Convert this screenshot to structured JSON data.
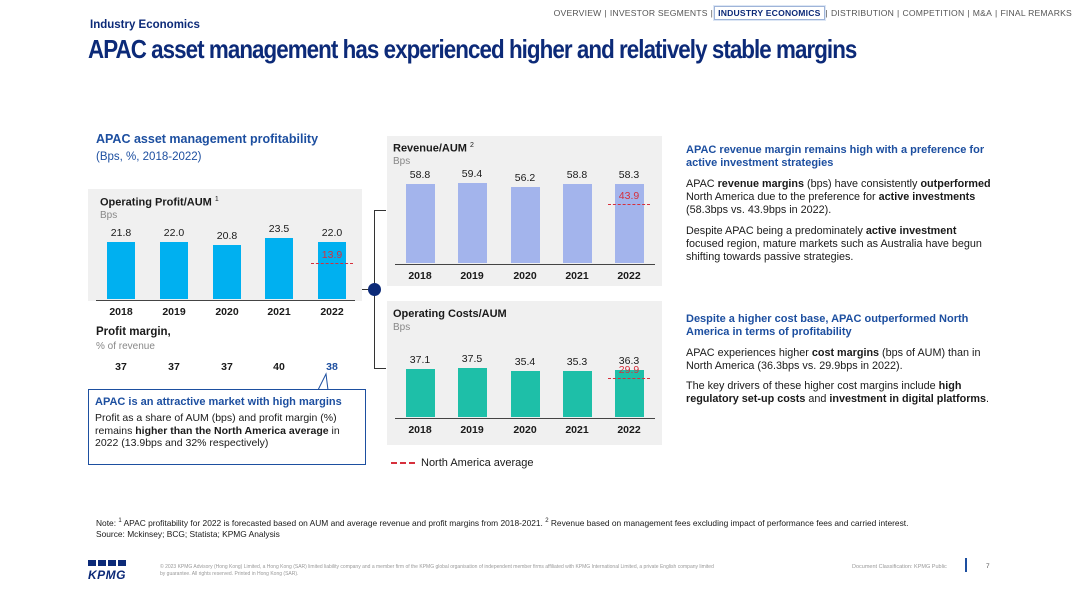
{
  "nav": {
    "items": [
      "OVERVIEW",
      "INVESTOR SEGMENTS",
      "INDUSTRY ECONOMICS",
      "DISTRIBUTION",
      "COMPETITION",
      "M&A",
      "FINAL REMARKS"
    ],
    "active": "INDUSTRY ECONOMICS"
  },
  "section_label": "Industry Economics",
  "page_title": "APAC asset management has experienced higher and relatively stable margins",
  "left": {
    "title": "APAC asset management profitability",
    "subtitle": "(Bps, %, 2018-2022)"
  },
  "chart_data": [
    {
      "type": "bar",
      "title": "Operating Profit/AUM",
      "footnote_ref": "1",
      "unit": "Bps",
      "categories": [
        "2018",
        "2019",
        "2020",
        "2021",
        "2022"
      ],
      "values": [
        21.8,
        22.0,
        20.8,
        23.5,
        22.0
      ],
      "value_labels": [
        "21.8",
        "22.0",
        "20.8",
        "23.5",
        "22.0"
      ],
      "north_america_2022": 13.9,
      "north_america_label": "13.9",
      "color": "#00b0f0"
    },
    {
      "type": "bar",
      "title": "Revenue/AUM",
      "footnote_ref": "2",
      "unit": "Bps",
      "categories": [
        "2018",
        "2019",
        "2020",
        "2021",
        "2022"
      ],
      "values": [
        58.8,
        59.4,
        56.2,
        58.8,
        58.3
      ],
      "value_labels": [
        "58.8",
        "59.4",
        "56.2",
        "58.8",
        "58.3"
      ],
      "north_america_2022": 43.9,
      "north_america_label": "43.9",
      "color": "#a3b4ec"
    },
    {
      "type": "bar",
      "title": "Operating Costs/AUM",
      "footnote_ref": "",
      "unit": "Bps",
      "categories": [
        "2018",
        "2019",
        "2020",
        "2021",
        "2022"
      ],
      "values": [
        37.1,
        37.5,
        35.4,
        35.3,
        36.3
      ],
      "value_labels": [
        "37.1",
        "37.5",
        "35.4",
        "35.3",
        "36.3"
      ],
      "north_america_2022": 29.9,
      "north_america_label": "29.9",
      "color": "#1ebfa8"
    }
  ],
  "profit_margin": {
    "title": "Profit margin,",
    "subtitle": "% of revenue",
    "values": [
      "37",
      "37",
      "37",
      "40",
      "38"
    ]
  },
  "callout": {
    "title": "APAC is an attractive market with high margins",
    "text_a": "Profit as a share of AUM (bps) and profit margin (%) remains ",
    "text_b": "higher than the North America average",
    "text_c": " in 2022 (13.9bps and 32% respectively)"
  },
  "legend": {
    "label": "North America average"
  },
  "right": {
    "heading1": "APAC revenue margin remains high with a preference for active investment strategies",
    "p1_a": "APAC ",
    "p1_b": "revenue margins",
    "p1_c": " (bps) have consistently ",
    "p1_d": "outperformed",
    "p1_e": " North America due to the preference for ",
    "p1_f": "active investments",
    "p1_g": " (58.3bps vs. 43.9bps in 2022).",
    "p2_a": "Despite APAC being a predominately ",
    "p2_b": "active investment",
    "p2_c": " focused region, mature markets such as Australia have begun shifting towards passive strategies.",
    "heading2": "Despite a higher cost base, APAC outperformed North America in terms of profitability",
    "p3_a": "APAC experiences higher ",
    "p3_b": "cost margins",
    "p3_c": " (bps of AUM) than in North America (36.3bps vs. 29.9bps in 2022).",
    "p4_a": "The key drivers of these higher cost margins include ",
    "p4_b": "high regulatory set-up costs",
    "p4_c": " and ",
    "p4_d": "investment in digital platforms",
    "p4_e": "."
  },
  "note": {
    "line1_a": "Note: ",
    "line1_b": " APAC profitability for 2022 is forecasted based on AUM and average revenue and profit margins from 2018-2021. ",
    "line1_c": " Revenue based on management fees excluding impact of performance fees and carried interest.",
    "sup1": "1",
    "sup2": "2",
    "line2": "Source: Mckinsey; BCG; Statista; KPMG Analysis"
  },
  "footer": {
    "logo": "KPMG",
    "legal": "© 2023 KPMG Advisory (Hong Kong) Limited, a Hong Kong (SAR) limited liability company and a member firm of the KPMG global organisation of independent member firms affiliated with KPMG International Limited, a private English company limited by guarantee. All rights reserved. Printed in Hong Kong (SAR).",
    "classification": "Document Classification: KPMG Public",
    "page": "7"
  }
}
